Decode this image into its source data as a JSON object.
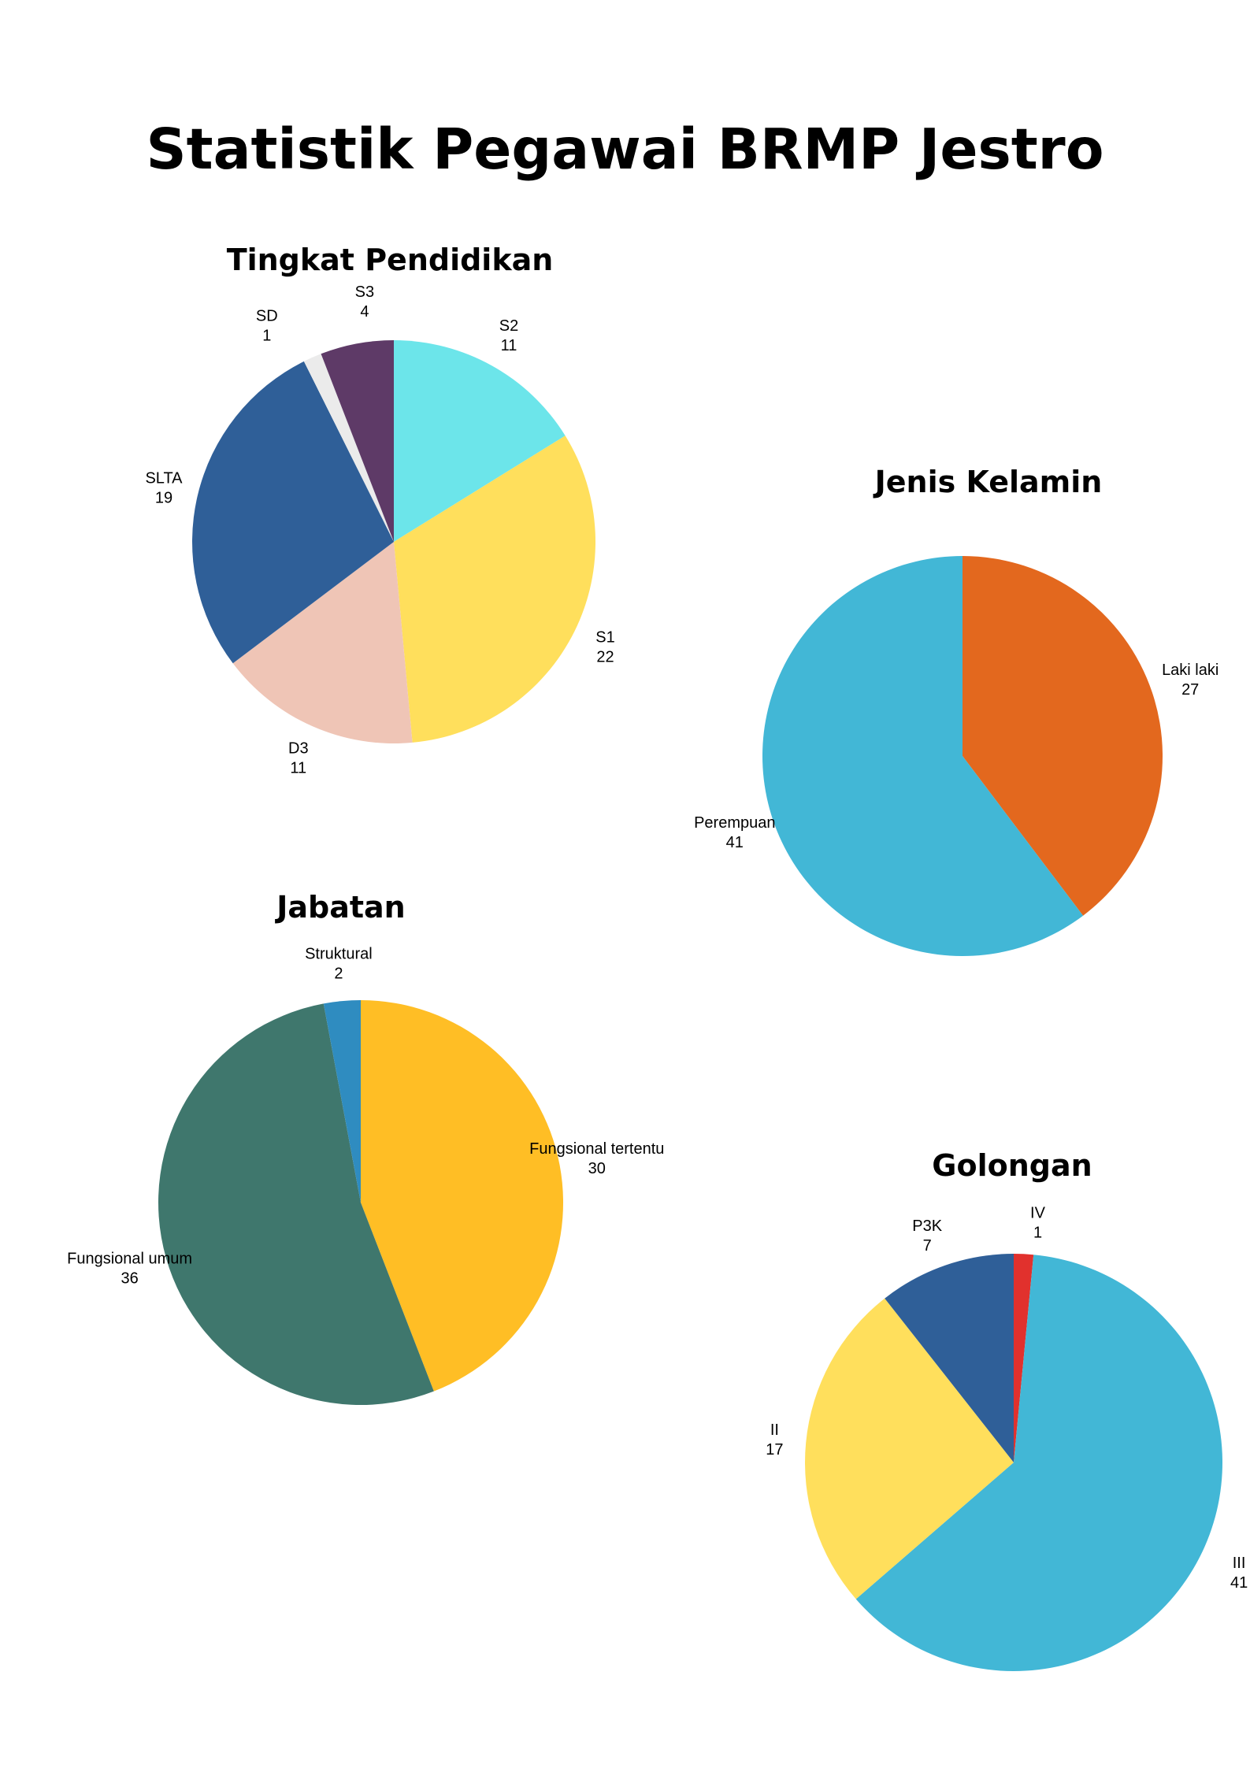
{
  "title": "Statistik Pegawai BRMP Jestro",
  "chart_data": [
    {
      "type": "pie",
      "title": "Tingkat Pendidikan",
      "slices": [
        {
          "label": "S2",
          "value": 11,
          "color": "#6ce5ea"
        },
        {
          "label": "S1",
          "value": 22,
          "color": "#ffdf5c"
        },
        {
          "label": "D3",
          "value": 11,
          "color": "#efc5b6"
        },
        {
          "label": "SLTA",
          "value": 19,
          "color": "#2f5f98"
        },
        {
          "label": "SD",
          "value": 1,
          "color": "#ebebeb"
        },
        {
          "label": "S3",
          "value": 4,
          "color": "#5e3a67"
        }
      ]
    },
    {
      "type": "pie",
      "title": "Jenis Kelamin",
      "slices": [
        {
          "label": "Laki laki",
          "value": 27,
          "color": "#e3681e"
        },
        {
          "label": "Perempuan",
          "value": 41,
          "color": "#42b7d6"
        }
      ]
    },
    {
      "type": "pie",
      "title": "Jabatan",
      "slices": [
        {
          "label": "Fungsional tertentu",
          "value": 30,
          "color": "#ffbe25"
        },
        {
          "label": "Fungsional umum",
          "value": 36,
          "color": "#3f776d"
        },
        {
          "label": "Struktural",
          "value": 2,
          "color": "#2f8cc0"
        }
      ]
    },
    {
      "type": "pie",
      "title": "Golongan",
      "slices": [
        {
          "label": "IV",
          "value": 1,
          "color": "#e1312d"
        },
        {
          "label": "III",
          "value": 41,
          "color": "#42b7d6"
        },
        {
          "label": "II",
          "value": 17,
          "color": "#ffdf5c"
        },
        {
          "label": "P3K",
          "value": 7,
          "color": "#2f5f98"
        }
      ]
    }
  ]
}
